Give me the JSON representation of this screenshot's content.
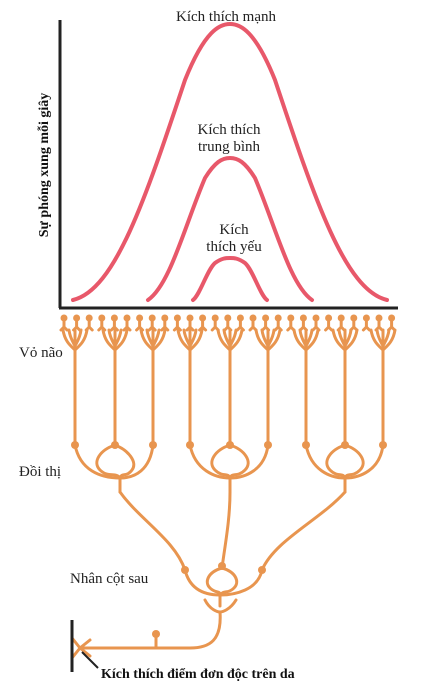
{
  "y_axis_label": "Sự phóng xung mỗi giây",
  "curves": {
    "strong": "Kích thích mạnh",
    "medium_line1": "Kích thích",
    "medium_line2": "trung bình",
    "weak_line1": "Kích",
    "weak_line2": "thích yếu"
  },
  "levels": {
    "cortex": "Vỏ não",
    "thalamus": "Đồi thị",
    "dorsal_column_nucleus": "Nhân cột sau"
  },
  "stimulus_label": "Kích thích điểm đơn độc trên da",
  "colors": {
    "curve": "#e8586a",
    "neuron": "#e8954f",
    "axis": "#222222"
  }
}
